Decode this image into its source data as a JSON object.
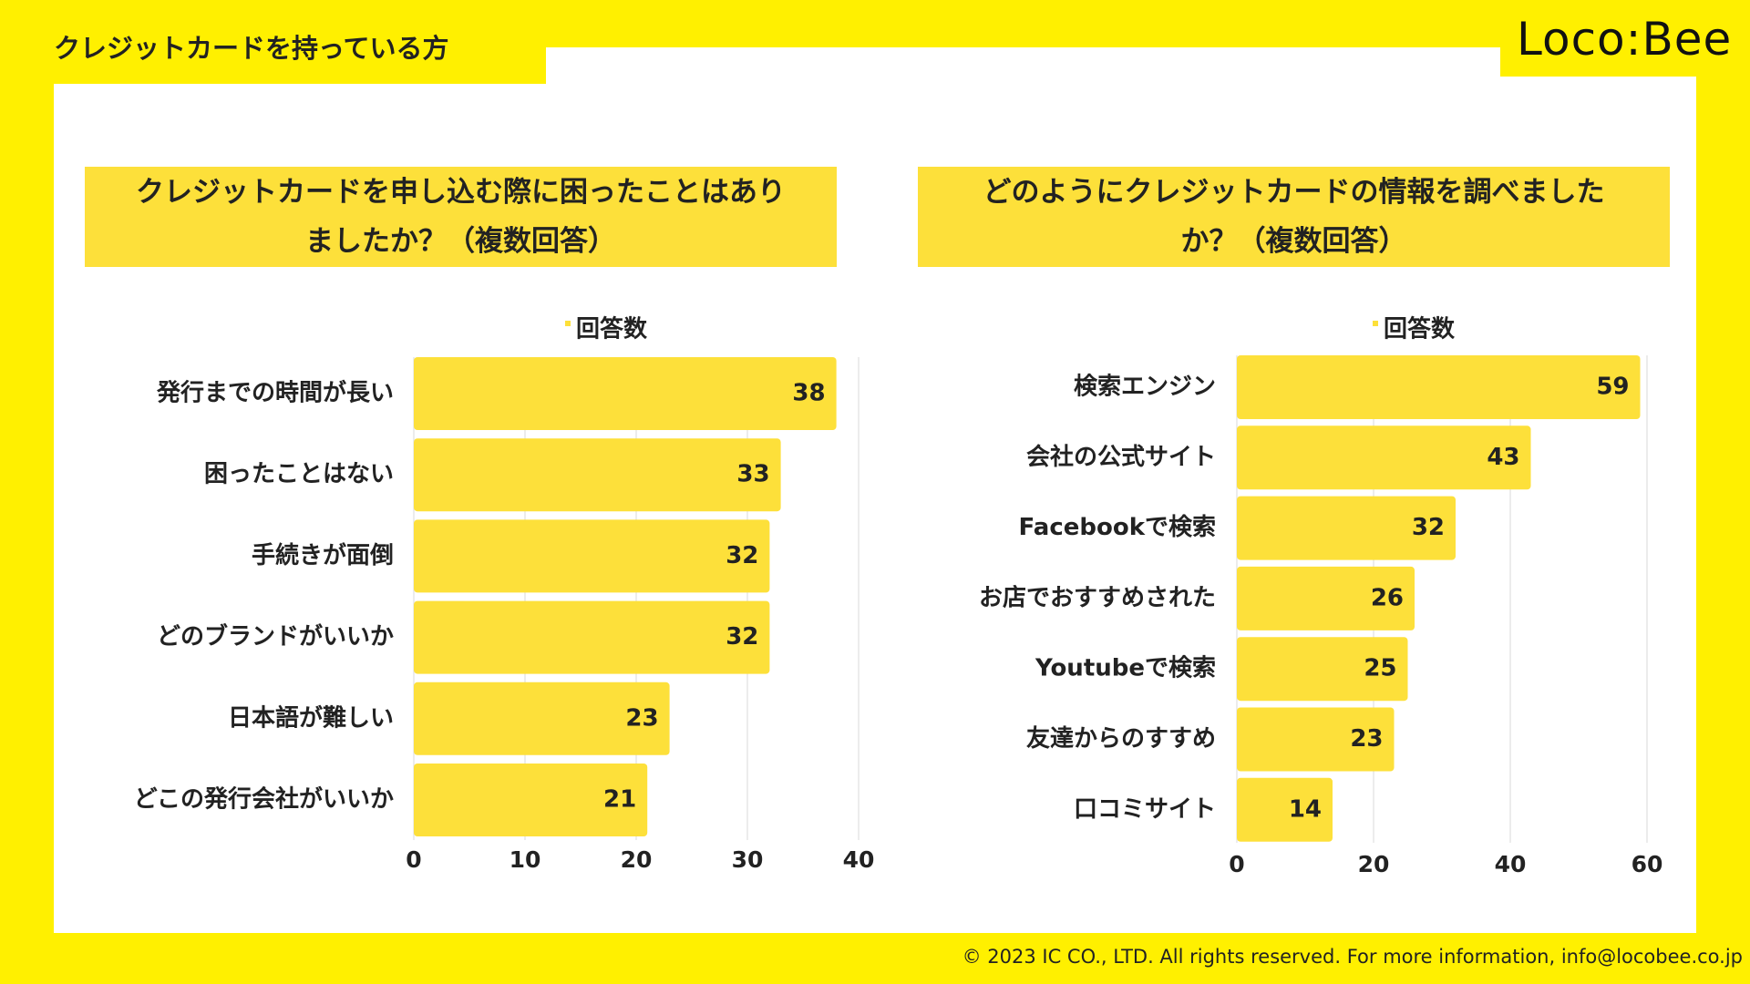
{
  "header": {
    "title": "クレジットカードを持っている方"
  },
  "logo": {
    "text": "Loco:Bee"
  },
  "footer": {
    "text": "© 2023 IC CO., LTD. All rights reserved. For more information, info@locobee.co.jp"
  },
  "colors": {
    "bar": "#FDE03A",
    "background": "#FFF000",
    "panel": "#FFFFFF",
    "grid": "#E6E6E6",
    "text": "#222222"
  },
  "chart_data": [
    {
      "type": "bar",
      "orientation": "horizontal",
      "title_lines": [
        "クレジットカードを申し込む際に困ったことはあり",
        "ましたか？（複数回答）"
      ],
      "legend": "回答数",
      "categories": [
        "発行までの時間が長い",
        "困ったことはない",
        "手続きが面倒",
        "どのブランドがいいか",
        "日本語が難しい",
        "どこの発行会社がいいか"
      ],
      "series": [
        {
          "name": "回答数",
          "values": [
            38,
            33,
            32,
            32,
            23,
            21
          ]
        }
      ],
      "xlim": [
        0,
        40
      ],
      "ticks": [
        0,
        10,
        20,
        30,
        40
      ],
      "grid": true
    },
    {
      "type": "bar",
      "orientation": "horizontal",
      "title_lines": [
        "どのようにクレジットカードの情報を調べました",
        "か？（複数回答）"
      ],
      "legend": "回答数",
      "categories": [
        "検索エンジン",
        "会社の公式サイト",
        "Facebookで検索",
        "お店でおすすめされた",
        "Youtubeで検索",
        "友達からのすすめ",
        "口コミサイト"
      ],
      "series": [
        {
          "name": "回答数",
          "values": [
            59,
            43,
            32,
            26,
            25,
            23,
            14
          ]
        }
      ],
      "xlim": [
        0,
        60
      ],
      "ticks": [
        0,
        20,
        40,
        60
      ],
      "grid": true
    }
  ]
}
